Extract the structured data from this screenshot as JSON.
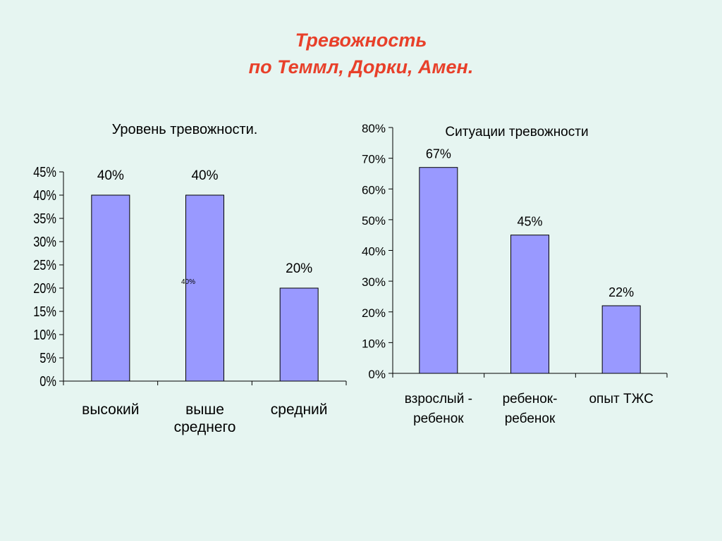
{
  "slide": {
    "title_line1": "Тревожность",
    "title_line2": "по Теммл, Дорки, Амен.",
    "accent_color": "#e8402a",
    "background_color": "#e6f5f1"
  },
  "chart_data": [
    {
      "type": "bar",
      "title": "Уровень тревожности.",
      "categories": [
        [
          "высокий"
        ],
        [
          "выше",
          "среднего"
        ],
        [
          "средний"
        ]
      ],
      "values": [
        40,
        40,
        20
      ],
      "data_labels": [
        "40%",
        "40%",
        "20%"
      ],
      "extra_label": "40%",
      "yticks": [
        "0%",
        "5%",
        "10%",
        "15%",
        "20%",
        "25%",
        "30%",
        "35%",
        "40%",
        "45%"
      ],
      "ylim": [
        0,
        45
      ],
      "grid": false,
      "bar_color": "#9999ff"
    },
    {
      "type": "bar",
      "title": "Ситуации тревожности",
      "categories": [
        [
          "взрослый -",
          "ребенок"
        ],
        [
          "ребенок-",
          "ребенок"
        ],
        [
          "опыт ТЖС"
        ]
      ],
      "values": [
        67,
        45,
        22
      ],
      "data_labels": [
        "67%",
        "45%",
        "22%"
      ],
      "yticks": [
        "0%",
        "10%",
        "20%",
        "30%",
        "40%",
        "50%",
        "60%",
        "70%",
        "80%"
      ],
      "ylim": [
        0,
        80
      ],
      "grid": false,
      "bar_color": "#9999ff"
    }
  ]
}
